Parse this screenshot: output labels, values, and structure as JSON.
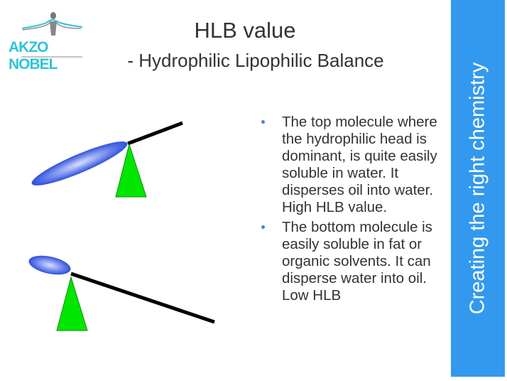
{
  "logo": {
    "text": "AKZO NOBEL"
  },
  "title": "HLB value",
  "subtitle": "- Hydrophilic Lipophilic Balance",
  "tagline": "Creating the right chemistry",
  "bullets": [
    "The top molecule where the hydrophilic head is dominant, is quite easily soluble in water. It disperses oil into water. High HLB value.",
    "The bottom molecule is easily soluble in fat or organic solvents. It can disperse water into oil. Low HLB"
  ],
  "colors": {
    "accent": "#3399ee",
    "logo": "#2ec4d6",
    "fulcrum": "#00e600",
    "head": "#3355dd"
  }
}
